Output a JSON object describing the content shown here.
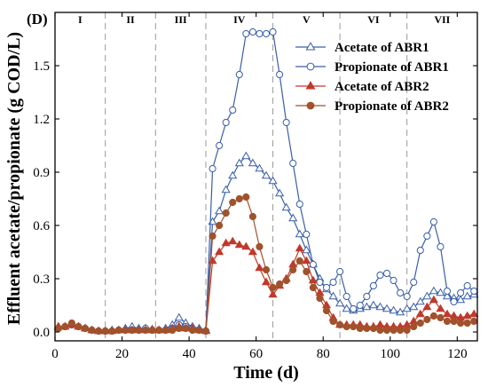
{
  "chart_data": {
    "type": "line",
    "panel_label": "(D)",
    "xlabel": "Time (d)",
    "ylabel": "Effluent acetate/propionate (g COD/L)",
    "xlim": [
      0,
      126
    ],
    "ylim": [
      -0.05,
      1.8
    ],
    "xticks": [
      0,
      20,
      40,
      60,
      80,
      100,
      120
    ],
    "yticks": [
      0.0,
      0.3,
      0.6,
      0.9,
      1.2,
      1.5
    ],
    "ytick_labels": [
      "0.0",
      "0.3",
      "0.6",
      "0.9",
      "1.2",
      "1.5"
    ],
    "phase_boundaries": [
      15,
      30,
      45,
      65,
      85,
      105
    ],
    "phases": [
      {
        "label": "I",
        "x": 7.5
      },
      {
        "label": "II",
        "x": 22.5
      },
      {
        "label": "III",
        "x": 37.5
      },
      {
        "label": "IV",
        "x": 55
      },
      {
        "label": "V",
        "x": 75
      },
      {
        "label": "VI",
        "x": 95
      },
      {
        "label": "VII",
        "x": 115.5
      }
    ],
    "legend_position": "top-right",
    "grid": false,
    "series": [
      {
        "name": "Acetate of ABR1",
        "color": "#3a5fa8",
        "marker": "triangle",
        "filled": false,
        "x": [
          1,
          3,
          5,
          7,
          9,
          11,
          13,
          15,
          17,
          19,
          21,
          23,
          25,
          27,
          29,
          31,
          33,
          35,
          37,
          39,
          41,
          43,
          45,
          47,
          49,
          51,
          53,
          55,
          57,
          59,
          61,
          63,
          65,
          67,
          69,
          71,
          73,
          75,
          77,
          79,
          81,
          83,
          85,
          87,
          89,
          91,
          93,
          95,
          97,
          99,
          101,
          103,
          105,
          107,
          109,
          111,
          113,
          115,
          117,
          119,
          121,
          123,
          125
        ],
        "y": [
          0.03,
          0.03,
          0.04,
          0.03,
          0.02,
          0.01,
          0.005,
          0.005,
          0.01,
          0.01,
          0.02,
          0.03,
          0.02,
          0.02,
          0.015,
          0.01,
          0.02,
          0.04,
          0.08,
          0.05,
          0.03,
          0.02,
          0.01,
          0.62,
          0.68,
          0.8,
          0.88,
          0.95,
          0.99,
          0.95,
          0.92,
          0.88,
          0.85,
          0.78,
          0.7,
          0.64,
          0.55,
          0.46,
          0.38,
          0.3,
          0.24,
          0.2,
          0.16,
          0.13,
          0.12,
          0.13,
          0.14,
          0.15,
          0.14,
          0.13,
          0.12,
          0.11,
          0.13,
          0.14,
          0.17,
          0.2,
          0.23,
          0.22,
          0.2,
          0.19,
          0.18,
          0.2,
          0.21
        ]
      },
      {
        "name": "Propionate of ABR1",
        "color": "#3a5fa8",
        "marker": "circle",
        "filled": false,
        "x": [
          1,
          3,
          5,
          7,
          9,
          11,
          13,
          15,
          17,
          19,
          21,
          23,
          25,
          27,
          29,
          31,
          33,
          35,
          37,
          39,
          41,
          43,
          45,
          47,
          49,
          51,
          53,
          55,
          57,
          59,
          61,
          63,
          65,
          67,
          69,
          71,
          73,
          75,
          77,
          79,
          81,
          83,
          85,
          87,
          89,
          91,
          93,
          95,
          97,
          99,
          101,
          103,
          105,
          107,
          109,
          111,
          113,
          115,
          117,
          119,
          121,
          123,
          125
        ],
        "y": [
          0.02,
          0.03,
          0.04,
          0.03,
          0.02,
          0.01,
          0.005,
          0.005,
          0.005,
          0.01,
          0.01,
          0.01,
          0.01,
          0.02,
          0.01,
          0.01,
          0.01,
          0.02,
          0.04,
          0.03,
          0.02,
          0.01,
          0.005,
          0.92,
          1.05,
          1.18,
          1.25,
          1.45,
          1.68,
          1.69,
          1.68,
          1.68,
          1.69,
          1.45,
          1.18,
          0.95,
          0.72,
          0.55,
          0.38,
          0.28,
          0.25,
          0.28,
          0.34,
          0.2,
          0.13,
          0.15,
          0.2,
          0.26,
          0.32,
          0.33,
          0.29,
          0.22,
          0.2,
          0.28,
          0.46,
          0.54,
          0.62,
          0.48,
          0.23,
          0.17,
          0.22,
          0.26,
          0.23
        ]
      },
      {
        "name": "Acetate of ABR2",
        "color": "#c0392b",
        "marker": "triangle",
        "filled": true,
        "x": [
          1,
          3,
          5,
          7,
          9,
          11,
          13,
          15,
          17,
          19,
          21,
          23,
          25,
          27,
          29,
          31,
          33,
          35,
          37,
          39,
          41,
          43,
          45,
          47,
          49,
          51,
          53,
          55,
          57,
          59,
          61,
          63,
          65,
          67,
          69,
          71,
          73,
          75,
          77,
          79,
          81,
          83,
          85,
          87,
          89,
          91,
          93,
          95,
          97,
          99,
          101,
          103,
          105,
          107,
          109,
          111,
          113,
          115,
          117,
          119,
          121,
          123,
          125
        ],
        "y": [
          0.03,
          0.03,
          0.04,
          0.03,
          0.02,
          0.01,
          0.005,
          0.005,
          0.005,
          0.01,
          0.01,
          0.01,
          0.01,
          0.01,
          0.01,
          0.01,
          0.01,
          0.02,
          0.03,
          0.02,
          0.02,
          0.01,
          0.005,
          0.4,
          0.45,
          0.5,
          0.51,
          0.49,
          0.48,
          0.45,
          0.36,
          0.28,
          0.21,
          0.26,
          0.3,
          0.38,
          0.47,
          0.4,
          0.29,
          0.22,
          0.15,
          0.08,
          0.04,
          0.04,
          0.04,
          0.04,
          0.03,
          0.03,
          0.04,
          0.03,
          0.03,
          0.03,
          0.04,
          0.06,
          0.1,
          0.14,
          0.18,
          0.13,
          0.1,
          0.09,
          0.08,
          0.09,
          0.1
        ]
      },
      {
        "name": "Propionate of ABR2",
        "color": "#a0522d",
        "marker": "circle",
        "filled": true,
        "x": [
          1,
          3,
          5,
          7,
          9,
          11,
          13,
          15,
          17,
          19,
          21,
          23,
          25,
          27,
          29,
          31,
          33,
          35,
          37,
          39,
          41,
          43,
          45,
          47,
          49,
          51,
          53,
          55,
          57,
          59,
          61,
          63,
          65,
          67,
          69,
          71,
          73,
          75,
          77,
          79,
          81,
          83,
          85,
          87,
          89,
          91,
          93,
          95,
          97,
          99,
          101,
          103,
          105,
          107,
          109,
          111,
          113,
          115,
          117,
          119,
          121,
          123,
          125
        ],
        "y": [
          0.02,
          0.03,
          0.05,
          0.03,
          0.02,
          0.01,
          0.005,
          0.005,
          0.005,
          0.01,
          0.01,
          0.01,
          0.01,
          0.01,
          0.01,
          0.01,
          0.01,
          0.01,
          0.02,
          0.02,
          0.01,
          0.01,
          0.005,
          0.54,
          0.6,
          0.67,
          0.73,
          0.75,
          0.76,
          0.65,
          0.48,
          0.35,
          0.25,
          0.27,
          0.29,
          0.35,
          0.4,
          0.34,
          0.25,
          0.19,
          0.12,
          0.06,
          0.04,
          0.03,
          0.03,
          0.02,
          0.02,
          0.02,
          0.01,
          0.01,
          0.01,
          0.01,
          0.01,
          0.03,
          0.05,
          0.07,
          0.09,
          0.08,
          0.06,
          0.06,
          0.05,
          0.05,
          0.06
        ]
      }
    ]
  }
}
